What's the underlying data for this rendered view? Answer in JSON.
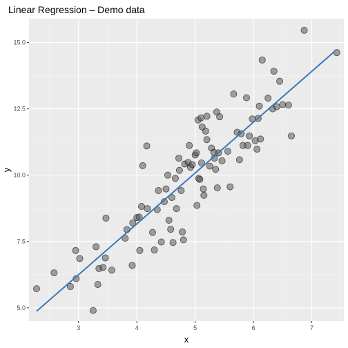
{
  "chart_data": {
    "type": "scatter",
    "title": "Linear Regression – Demo data",
    "xlabel": "x",
    "ylabel": "y",
    "xlim": [
      2.15,
      7.55
    ],
    "ylim": [
      4.5,
      15.9
    ],
    "x_ticks": [
      3,
      4,
      5,
      6,
      7
    ],
    "y_ticks": [
      5.0,
      7.5,
      10.0,
      12.5,
      15.0
    ],
    "x_tick_labels": [
      "3",
      "4",
      "5",
      "6",
      "7"
    ],
    "y_tick_labels": [
      "5.0",
      "7.5",
      "10.0",
      "12.5",
      "15.0"
    ],
    "grid": true,
    "legend": "none",
    "series": [
      {
        "type": "points",
        "color": "#4d4d4d",
        "points": [
          [
            2.28,
            5.72
          ],
          [
            2.58,
            6.32
          ],
          [
            2.86,
            5.8
          ],
          [
            2.96,
            6.1
          ],
          [
            2.95,
            7.16
          ],
          [
            3.02,
            6.86
          ],
          [
            3.25,
            4.9
          ],
          [
            3.3,
            7.3
          ],
          [
            3.33,
            5.88
          ],
          [
            3.35,
            6.48
          ],
          [
            3.42,
            6.52
          ],
          [
            3.46,
            6.88
          ],
          [
            3.47,
            8.38
          ],
          [
            3.57,
            6.42
          ],
          [
            3.8,
            7.62
          ],
          [
            3.83,
            7.95
          ],
          [
            3.92,
            6.6
          ],
          [
            3.93,
            8.2
          ],
          [
            4.0,
            8.4
          ],
          [
            4.04,
            8.42
          ],
          [
            4.08,
            8.82
          ],
          [
            4.1,
            10.36
          ],
          [
            4.05,
            7.16
          ],
          [
            4.17,
            11.1
          ],
          [
            4.18,
            8.74
          ],
          [
            4.27,
            7.84
          ],
          [
            4.3,
            7.18
          ],
          [
            4.35,
            8.7
          ],
          [
            4.37,
            9.42
          ],
          [
            4.42,
            7.48
          ],
          [
            4.47,
            9.0
          ],
          [
            4.5,
            9.48
          ],
          [
            4.53,
            10.0
          ],
          [
            4.55,
            8.3
          ],
          [
            4.58,
            7.96
          ],
          [
            4.6,
            9.16
          ],
          [
            4.62,
            7.46
          ],
          [
            4.66,
            9.88
          ],
          [
            4.68,
            8.74
          ],
          [
            4.72,
            10.64
          ],
          [
            4.73,
            10.18
          ],
          [
            4.76,
            9.42
          ],
          [
            4.78,
            7.86
          ],
          [
            4.8,
            7.56
          ],
          [
            4.82,
            10.42
          ],
          [
            4.88,
            10.48
          ],
          [
            4.9,
            11.12
          ],
          [
            4.92,
            10.3
          ],
          [
            4.95,
            10.4
          ],
          [
            5.0,
            10.76
          ],
          [
            5.02,
            10.84
          ],
          [
            5.03,
            8.86
          ],
          [
            5.05,
            12.08
          ],
          [
            5.06,
            9.88
          ],
          [
            5.08,
            9.84
          ],
          [
            5.1,
            12.16
          ],
          [
            5.11,
            10.46
          ],
          [
            5.12,
            11.82
          ],
          [
            5.14,
            9.48
          ],
          [
            5.15,
            9.24
          ],
          [
            5.18,
            11.66
          ],
          [
            5.2,
            12.22
          ],
          [
            5.2,
            11.34
          ],
          [
            5.25,
            10.34
          ],
          [
            5.28,
            11.02
          ],
          [
            5.32,
            10.86
          ],
          [
            5.33,
            10.64
          ],
          [
            5.35,
            10.22
          ],
          [
            5.37,
            12.38
          ],
          [
            5.38,
            9.52
          ],
          [
            5.4,
            10.84
          ],
          [
            5.42,
            12.2
          ],
          [
            5.46,
            10.54
          ],
          [
            5.56,
            10.9
          ],
          [
            5.6,
            9.56
          ],
          [
            5.66,
            13.06
          ],
          [
            5.72,
            11.62
          ],
          [
            5.76,
            10.58
          ],
          [
            5.79,
            11.56
          ],
          [
            5.82,
            11.12
          ],
          [
            5.88,
            12.92
          ],
          [
            5.9,
            11.12
          ],
          [
            5.93,
            11.48
          ],
          [
            5.98,
            12.12
          ],
          [
            6.03,
            11.3
          ],
          [
            6.06,
            10.98
          ],
          [
            6.08,
            12.14
          ],
          [
            6.1,
            12.6
          ],
          [
            6.12,
            11.36
          ],
          [
            6.15,
            14.34
          ],
          [
            6.25,
            12.9
          ],
          [
            6.33,
            12.5
          ],
          [
            6.35,
            13.92
          ],
          [
            6.4,
            12.58
          ],
          [
            6.45,
            13.54
          ],
          [
            6.5,
            12.66
          ],
          [
            6.6,
            12.64
          ],
          [
            6.65,
            11.48
          ],
          [
            6.87,
            15.46
          ],
          [
            7.43,
            14.62
          ]
        ]
      },
      {
        "type": "line",
        "color": "#3a78b8",
        "points": [
          [
            2.28,
            4.87
          ],
          [
            7.4,
            14.68
          ]
        ]
      }
    ]
  }
}
